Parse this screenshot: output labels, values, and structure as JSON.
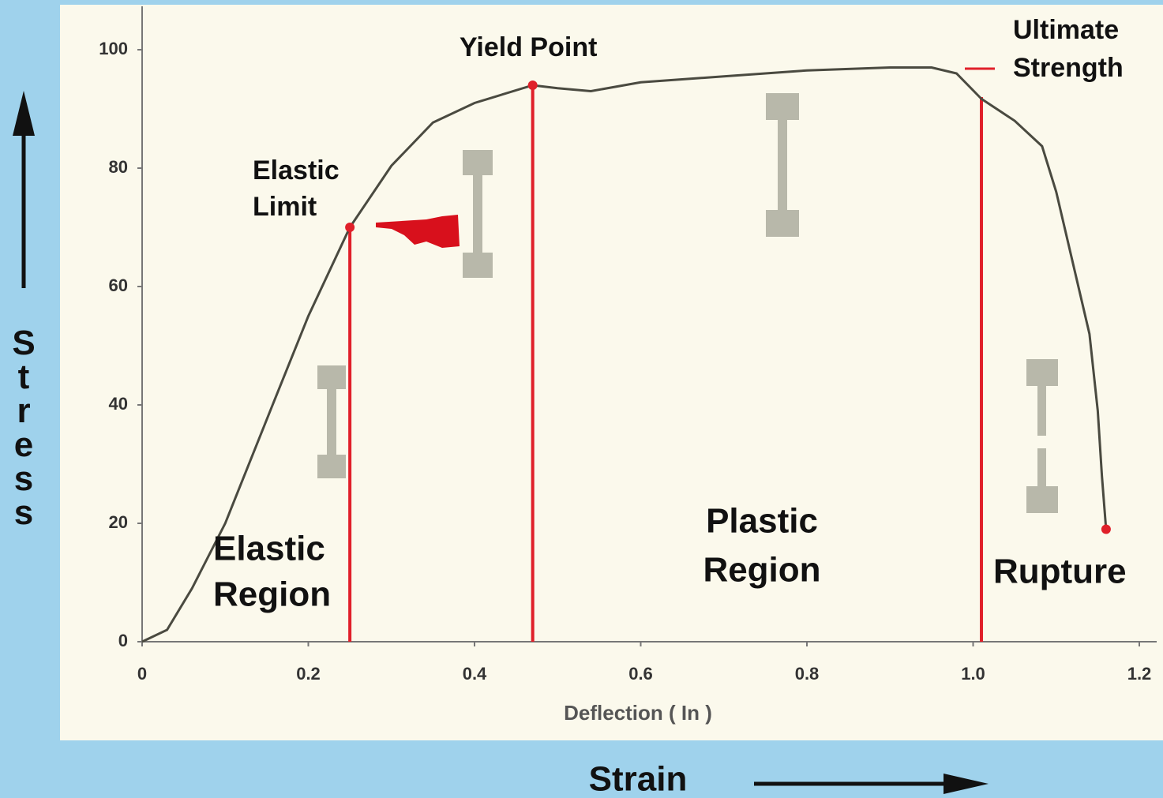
{
  "chart_data": {
    "type": "line",
    "x_label": "Deflection ( In )",
    "y_label": "Stress",
    "strain_label": "Strain",
    "xlim": [
      0,
      1.2
    ],
    "xticks": [
      0,
      0.2,
      0.4,
      0.6,
      0.8,
      {
        "value": 1.0,
        "label": "1.0"
      },
      1.2
    ],
    "ylim": [
      0,
      100
    ],
    "yticks": [
      0,
      20,
      40,
      60,
      80,
      100
    ],
    "grid": false,
    "series": [
      {
        "color": "#4a4a40",
        "x": [
          0,
          0.03,
          0.06,
          0.1,
          0.157,
          0.2,
          0.25,
          0.3,
          0.35,
          0.4,
          0.47,
          0.5,
          0.54,
          0.6,
          0.7,
          0.8,
          0.9,
          0.95,
          0.98,
          1.01,
          1.05,
          1.083,
          1.1,
          1.12,
          1.14,
          1.15,
          1.155,
          1.16
        ],
        "values": [
          0,
          2,
          9,
          20,
          40,
          55,
          70,
          80.4,
          87.7,
          91,
          94,
          93.5,
          93,
          94.5,
          95.5,
          96.5,
          97,
          97,
          96,
          91.7,
          88,
          83.7,
          76,
          64,
          52,
          39,
          28,
          19
        ]
      }
    ],
    "points": [
      {
        "x": 0.25,
        "y": 70
      },
      {
        "x": 0.47,
        "y": 94
      },
      {
        "x": 1.16,
        "y": 19
      }
    ],
    "vlines": [
      {
        "x": 0.25,
        "y": 70
      },
      {
        "x": 0.47,
        "y": 94
      },
      {
        "x": 1.01,
        "y": 92
      }
    ],
    "accent_color": "#e0202a",
    "annotations": [
      {
        "text": [
          "Elastic",
          "Limit"
        ]
      },
      {
        "text": [
          "Yield Point"
        ]
      },
      {
        "text": [
          "Ultimate",
          "Strength"
        ]
      },
      {
        "text": [
          "Elastic",
          "Region"
        ]
      },
      {
        "text": [
          "Plastic",
          "Region"
        ]
      },
      {
        "text": [
          "Rupture"
        ]
      }
    ]
  }
}
